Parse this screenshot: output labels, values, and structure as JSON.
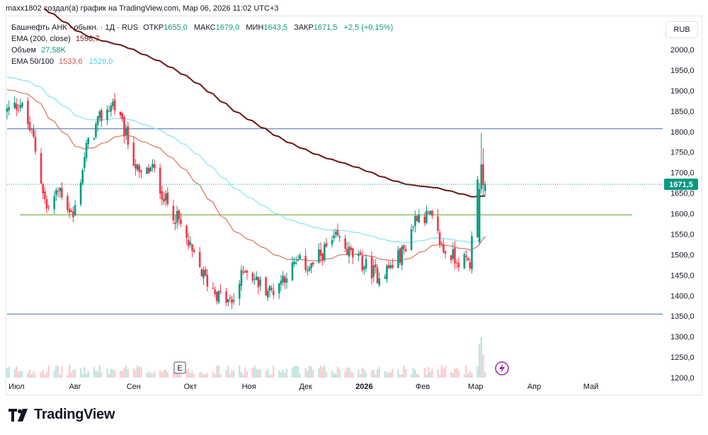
{
  "header": {
    "text": "maxx1802 создал(а) график на TradingView.com, Мар 06, 2026 11:02 UTC+3"
  },
  "legend": {
    "symbol": "Башнефть АНК - обыкн. · 1Д · RUS",
    "open_label": "ОТКР",
    "open_value": "1655,0",
    "high_label": "МАКС",
    "high_value": "1679,0",
    "low_label": "МИН",
    "low_value": "1643,5",
    "close_label": "ЗАКР",
    "close_value": "1671,5",
    "change": "+2,5 (+0,15%)",
    "ema200_label": "EMA (200, close)",
    "ema200_value": "1598,7",
    "volume_label": "Объем",
    "volume_value": "27,58K",
    "ema50100_label": "EMA 50/100",
    "ema50_value": "1533,6",
    "ema100_value": "1526,0"
  },
  "currency": "RUB",
  "last_price_label": "1671,5",
  "earnings_marker": "E",
  "logo_text": "TradingView",
  "colors": {
    "up": "#089981",
    "down": "#f23645",
    "ema200": "#6d1414",
    "ema50": "#d9725f",
    "ema100": "#80e5f0",
    "hline_blue": "#5b7fc2",
    "hline_green": "#7cb342"
  },
  "chart_data": {
    "type": "candlestick",
    "x_tick_labels": [
      "Июл",
      "Авг",
      "Сен",
      "Окт",
      "Ноя",
      "Дек",
      "2026",
      "Фев",
      "Мар",
      "Апр",
      "Май"
    ],
    "y_tick_labels": [
      "2000,0",
      "1950,0",
      "1900,0",
      "1850,0",
      "1800,0",
      "1750,0",
      "1700,0",
      "1650,0",
      "1600,0",
      "1550,0",
      "1500,0",
      "1450,0",
      "1400,0",
      "1350,0",
      "1300,0",
      "1250,0",
      "1200,0"
    ],
    "y_ticks": [
      2000,
      1950,
      1900,
      1850,
      1800,
      1750,
      1700,
      1650,
      1600,
      1550,
      1500,
      1450,
      1400,
      1350,
      1300,
      1250,
      1200
    ],
    "ylim": [
      1180,
      2030
    ],
    "x_range": [
      "2025-06-26",
      "2026-06-08"
    ],
    "anchors": {
      "dates": [
        "2025-06-26",
        "2025-07-03",
        "2025-07-10",
        "2025-07-17",
        "2025-07-24",
        "2025-07-31",
        "2025-08-07",
        "2025-08-14",
        "2025-08-21",
        "2025-08-28",
        "2025-09-04",
        "2025-09-11",
        "2025-09-18",
        "2025-09-25",
        "2025-10-02",
        "2025-10-09",
        "2025-10-16",
        "2025-10-23",
        "2025-10-30",
        "2025-11-06",
        "2025-11-13",
        "2025-11-20",
        "2025-11-27",
        "2025-12-04",
        "2025-12-11",
        "2025-12-18",
        "2025-12-25",
        "2026-01-08",
        "2026-01-15",
        "2026-01-22",
        "2026-01-29",
        "2026-02-05",
        "2026-02-12",
        "2026-02-19",
        "2026-02-26",
        "2026-03-02",
        "2026-03-06"
      ],
      "close": [
        1850,
        1870,
        1780,
        1610,
        1660,
        1590,
        1760,
        1830,
        1870,
        1790,
        1690,
        1710,
        1630,
        1580,
        1500,
        1440,
        1400,
        1380,
        1470,
        1430,
        1410,
        1450,
        1480,
        1470,
        1510,
        1540,
        1500,
        1450,
        1470,
        1510,
        1600,
        1590,
        1510,
        1490,
        1480,
        1700,
        1671.5
      ]
    },
    "horizontal_lines": [
      {
        "value": 1807,
        "color": "blue"
      },
      {
        "value": 1597,
        "color": "green"
      },
      {
        "value": 1355,
        "color": "blue"
      }
    ],
    "last_close": 1671.5,
    "ema200_end": 1598.7,
    "ema50_end": 1533.6,
    "ema100_end": 1526.0,
    "volume_last": "27,58K"
  }
}
